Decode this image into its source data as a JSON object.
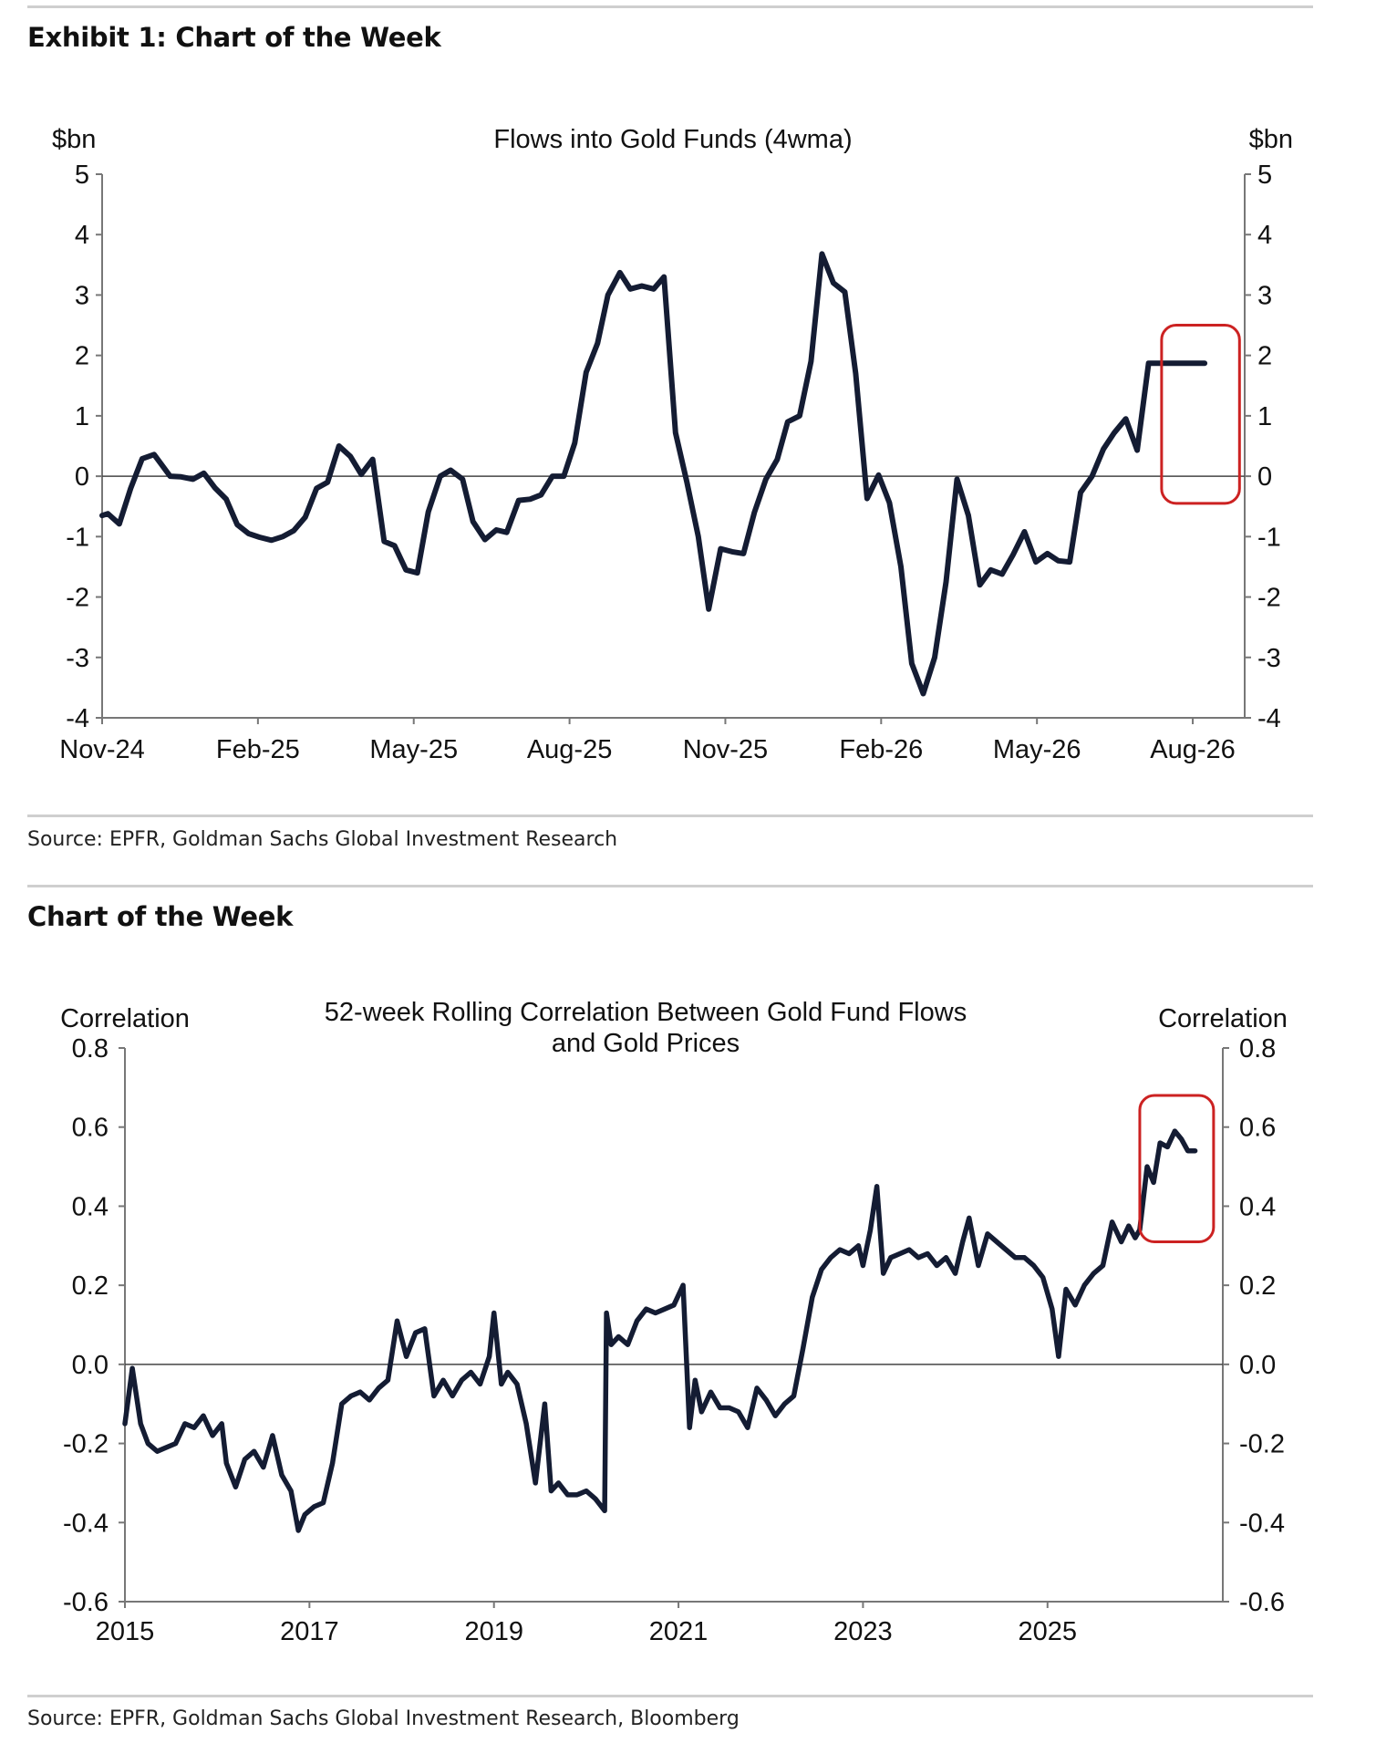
{
  "exhibit1": {
    "heading": "Exhibit 1: Chart of the Week",
    "source": "Source: EPFR, Goldman Sachs Global Investment Research"
  },
  "exhibit2": {
    "heading": "Chart of the Week",
    "source": "Source: EPFR, Goldman Sachs Global Investment Research, Bloomberg"
  },
  "colors": {
    "line": "#141c33",
    "highlight": "#cc2222",
    "axis": "#777777",
    "zero_line": "#444444",
    "rule": "#cfcfcf"
  },
  "chart_data": [
    {
      "type": "line",
      "title": "Flows into Gold Funds (4wma)",
      "ylabel_left": "$bn",
      "ylabel_right": "$bn",
      "ylim": [
        -4,
        5
      ],
      "yticks": [
        5,
        4,
        3,
        2,
        1,
        0,
        -1,
        -2,
        -3,
        -4
      ],
      "xlim": [
        0,
        22
      ],
      "x_ticks": [
        {
          "label": "Nov-24",
          "x": 0
        },
        {
          "label": "Feb-25",
          "x": 3
        },
        {
          "label": "May-25",
          "x": 6
        },
        {
          "label": "Aug-25",
          "x": 9
        },
        {
          "label": "Nov-25",
          "x": 12
        },
        {
          "label": "Feb-26",
          "x": 15
        },
        {
          "label": "May-26",
          "x": 18
        },
        {
          "label": "Aug-26",
          "x": 21
        }
      ],
      "grid": false,
      "highlight_box": {
        "x": [
          20.4,
          21.9
        ],
        "y": [
          -0.45,
          2.5
        ]
      },
      "series": [
        {
          "x": [
            0,
            0.11,
            0.33,
            0.55,
            0.77,
            1.0,
            1.31,
            1.52,
            1.75,
            1.96,
            2.17,
            2.39,
            2.6,
            2.82,
            3.03,
            3.26,
            3.48,
            3.69,
            3.91,
            4.13,
            4.34,
            4.56,
            4.78,
            4.99,
            5.21,
            5.43,
            5.63,
            5.85,
            6.07,
            6.28,
            6.51,
            6.71,
            6.94,
            7.14,
            7.37,
            7.59,
            7.79,
            8.02,
            8.24,
            8.45,
            8.67,
            8.89,
            9.1,
            9.32,
            9.54,
            9.74,
            9.97,
            10.17,
            10.39,
            10.62,
            10.82,
            11.04,
            11.26,
            11.48,
            11.68,
            11.91,
            12.13,
            12.35,
            12.56,
            12.78,
            13.0,
            13.2,
            13.43,
            13.65,
            13.86,
            14.08,
            14.3,
            14.51,
            14.73,
            14.95,
            15.16,
            15.38,
            15.59,
            15.81,
            16.03,
            16.25,
            16.46,
            16.68,
            16.9,
            17.11,
            17.33,
            17.54,
            17.76,
            17.98,
            18.2,
            18.41,
            18.63,
            18.84,
            19.06,
            19.28,
            19.49,
            19.71,
            19.93,
            20.15,
            20.36,
            20.58,
            20.8,
            21.01,
            21.23
          ],
          "values": [
            -0.65,
            -0.62,
            -0.79,
            -0.2,
            0.29,
            0.36,
            0.0,
            -0.01,
            -0.05,
            0.05,
            -0.19,
            -0.38,
            -0.8,
            -0.95,
            -1.01,
            -1.06,
            -1.0,
            -0.9,
            -0.68,
            -0.2,
            -0.1,
            0.5,
            0.33,
            0.03,
            0.28,
            -1.08,
            -1.15,
            -1.55,
            -1.6,
            -0.59,
            0.0,
            0.1,
            -0.05,
            -0.75,
            -1.05,
            -0.89,
            -0.93,
            -0.4,
            -0.38,
            -0.31,
            0.0,
            0.0,
            0.55,
            1.72,
            2.2,
            3.0,
            3.37,
            3.1,
            3.15,
            3.1,
            3.3,
            0.72,
            -0.1,
            -1.0,
            -2.2,
            -1.2,
            -1.25,
            -1.28,
            -0.6,
            -0.05,
            0.28,
            0.9,
            1.0,
            1.9,
            3.68,
            3.2,
            3.05,
            1.7,
            -0.37,
            0.02,
            -0.44,
            -1.5,
            -3.1,
            -3.6,
            -3.0,
            -1.75,
            -0.05,
            -0.65,
            -1.8,
            -1.55,
            -1.62,
            -1.3,
            -0.92,
            -1.42,
            -1.28,
            -1.4,
            -1.42,
            -0.27,
            0.0,
            0.45,
            0.72,
            0.95,
            0.43,
            1.87,
            1.87,
            1.87,
            1.87,
            1.87,
            1.87
          ]
        }
      ]
    },
    {
      "type": "line",
      "title": "52-week Rolling Correlation Between Gold Fund Flows and Gold Prices",
      "title_lines": [
        "52-week Rolling Correlation Between Gold Fund Flows",
        "and Gold Prices"
      ],
      "ylabel_left": "Correlation",
      "ylabel_right": "Correlation",
      "ylim": [
        -0.6,
        0.8
      ],
      "yticks": [
        "0.8",
        "0.6",
        "0.4",
        "0.2",
        "0.0",
        "-0.2",
        "-0.4",
        "-0.6"
      ],
      "xlim": [
        2015,
        2026.9
      ],
      "x_ticks": [
        "2015",
        "2017",
        "2019",
        "2021",
        "2023",
        "2025"
      ],
      "grid": false,
      "highlight_box": {
        "x": [
          2026.0,
          2026.8
        ],
        "y": [
          0.31,
          0.68
        ]
      },
      "series": [
        {
          "x": [
            2015.0,
            2015.08,
            2015.17,
            2015.25,
            2015.35,
            2015.45,
            2015.55,
            2015.65,
            2015.75,
            2015.85,
            2015.95,
            2016.05,
            2016.1,
            2016.2,
            2016.3,
            2016.4,
            2016.5,
            2016.6,
            2016.7,
            2016.8,
            2016.88,
            2016.95,
            2017.05,
            2017.15,
            2017.25,
            2017.35,
            2017.45,
            2017.55,
            2017.65,
            2017.75,
            2017.85,
            2017.95,
            2018.05,
            2018.15,
            2018.25,
            2018.35,
            2018.45,
            2018.55,
            2018.65,
            2018.75,
            2018.85,
            2018.95,
            2019.0,
            2019.08,
            2019.15,
            2019.25,
            2019.35,
            2019.45,
            2019.55,
            2019.62,
            2019.7,
            2019.8,
            2019.9,
            2020.0,
            2020.1,
            2020.2,
            2020.22,
            2020.27,
            2020.35,
            2020.45,
            2020.55,
            2020.65,
            2020.75,
            2020.85,
            2020.95,
            2021.05,
            2021.12,
            2021.18,
            2021.25,
            2021.35,
            2021.45,
            2021.55,
            2021.65,
            2021.75,
            2021.85,
            2021.95,
            2022.05,
            2022.15,
            2022.25,
            2022.35,
            2022.45,
            2022.55,
            2022.65,
            2022.75,
            2022.85,
            2022.95,
            2023.0,
            2023.08,
            2023.15,
            2023.22,
            2023.3,
            2023.4,
            2023.5,
            2023.6,
            2023.7,
            2023.8,
            2023.9,
            2024.0,
            2024.08,
            2024.15,
            2024.25,
            2024.35,
            2024.45,
            2024.55,
            2024.65,
            2024.75,
            2024.85,
            2024.95,
            2025.05,
            2025.12,
            2025.2,
            2025.3,
            2025.4,
            2025.5,
            2025.6,
            2025.7,
            2025.8,
            2025.88,
            2025.95,
            2026.0,
            2026.08,
            2026.15,
            2026.22,
            2026.3,
            2026.38,
            2026.45,
            2026.52,
            2026.6
          ],
          "values": [
            -0.15,
            -0.01,
            -0.15,
            -0.2,
            -0.22,
            -0.21,
            -0.2,
            -0.15,
            -0.16,
            -0.13,
            -0.18,
            -0.15,
            -0.25,
            -0.31,
            -0.24,
            -0.22,
            -0.26,
            -0.18,
            -0.28,
            -0.32,
            -0.42,
            -0.38,
            -0.36,
            -0.35,
            -0.25,
            -0.1,
            -0.08,
            -0.07,
            -0.09,
            -0.06,
            -0.04,
            0.11,
            0.02,
            0.08,
            0.09,
            -0.08,
            -0.04,
            -0.08,
            -0.04,
            -0.02,
            -0.05,
            0.02,
            0.13,
            -0.05,
            -0.02,
            -0.05,
            -0.15,
            -0.3,
            -0.1,
            -0.32,
            -0.3,
            -0.33,
            -0.33,
            -0.32,
            -0.34,
            -0.37,
            0.13,
            0.05,
            0.07,
            0.05,
            0.11,
            0.14,
            0.13,
            0.14,
            0.15,
            0.2,
            -0.16,
            -0.04,
            -0.12,
            -0.07,
            -0.11,
            -0.11,
            -0.12,
            -0.16,
            -0.06,
            -0.09,
            -0.13,
            -0.1,
            -0.08,
            0.04,
            0.17,
            0.24,
            0.27,
            0.29,
            0.28,
            0.3,
            0.25,
            0.34,
            0.45,
            0.23,
            0.27,
            0.28,
            0.29,
            0.27,
            0.28,
            0.25,
            0.27,
            0.23,
            0.31,
            0.37,
            0.25,
            0.33,
            0.31,
            0.29,
            0.27,
            0.27,
            0.25,
            0.22,
            0.14,
            0.02,
            0.19,
            0.15,
            0.2,
            0.23,
            0.25,
            0.36,
            0.31,
            0.35,
            0.32,
            0.34,
            0.5,
            0.46,
            0.56,
            0.55,
            0.59,
            0.57,
            0.54,
            0.54
          ]
        }
      ]
    }
  ]
}
